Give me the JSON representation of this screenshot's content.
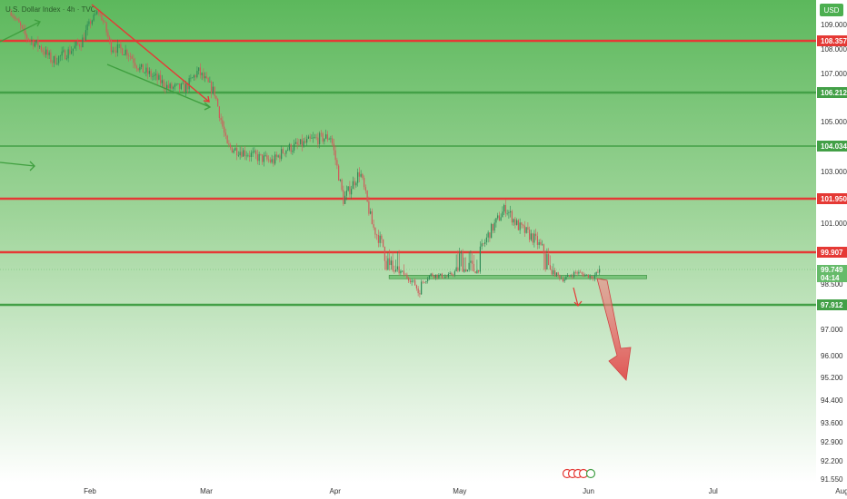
{
  "header": {
    "title": "U.S. Dollar Index · 4h · TVC",
    "currency": "USD"
  },
  "colors": {
    "bg_top": "#4caf50",
    "bg_bottom": "#ffffff",
    "support": "#43a047",
    "resistance": "#e53935",
    "candle_up": "#2e8b57",
    "candle_down": "#d05a5a",
    "zone": "#66bb6a"
  },
  "chart_data": {
    "type": "candlestick",
    "title": "U.S. Dollar Index · 4h · TVC",
    "x_ticks": [
      "Feb",
      "Mar",
      "Apr",
      "May",
      "Jun",
      "Jul",
      "Aug"
    ],
    "y_ticks": [
      "109.000",
      "108.000",
      "107.000",
      "105.000",
      "103.000",
      "101.000",
      "98.500",
      "97.000",
      "96.000",
      "95.200",
      "94.400",
      "93.600",
      "92.900",
      "92.200",
      "91.550"
    ],
    "levels": [
      {
        "value": 108.357,
        "label": "108.357",
        "color": "red"
      },
      {
        "value": 106.212,
        "label": "106.212",
        "color": "green"
      },
      {
        "value": 104.034,
        "label": "104.034",
        "color": "green"
      },
      {
        "value": 101.95,
        "label": "101.950",
        "color": "red"
      },
      {
        "value": 99.907,
        "label": "99.907",
        "color": "red"
      },
      {
        "value": 97.912,
        "label": "97.912",
        "color": "green"
      }
    ],
    "current_price": {
      "value": 99.749,
      "label": "99.749",
      "countdown": "04:14"
    },
    "price_path": [
      [
        "Jan 13",
        109.8
      ],
      [
        "Jan 16",
        108.6
      ],
      [
        "Jan 20",
        108.1
      ],
      [
        "Jan 23",
        107.5
      ],
      [
        "Jan 27",
        107.9
      ],
      [
        "Jan 30",
        108.3
      ],
      [
        "Feb 3",
        109.9
      ],
      [
        "Feb 6",
        108.1
      ],
      [
        "Feb 10",
        107.9
      ],
      [
        "Feb 13",
        107.2
      ],
      [
        "Feb 17",
        106.8
      ],
      [
        "Feb 20",
        106.4
      ],
      [
        "Feb 24",
        106.4
      ],
      [
        "Feb 27",
        107.1
      ],
      [
        "Mar 3",
        106.2
      ],
      [
        "Mar 6",
        104.0
      ],
      [
        "Mar 10",
        103.8
      ],
      [
        "Mar 13",
        103.6
      ],
      [
        "Mar 17",
        103.4
      ],
      [
        "Mar 20",
        103.9
      ],
      [
        "Mar 24",
        104.1
      ],
      [
        "Mar 27",
        104.3
      ],
      [
        "Mar 31",
        104.4
      ],
      [
        "Apr 3",
        101.9
      ],
      [
        "Apr 7",
        103.0
      ],
      [
        "Apr 10",
        100.9
      ],
      [
        "Apr 14",
        99.7
      ],
      [
        "Apr 17",
        99.5
      ],
      [
        "Apr 21",
        98.3
      ],
      [
        "Apr 24",
        99.3
      ],
      [
        "Apr 28",
        99.1
      ],
      [
        "May 1",
        99.8
      ],
      [
        "May 5",
        99.6
      ],
      [
        "May 8",
        100.6
      ],
      [
        "May 12",
        101.6
      ],
      [
        "May 15",
        100.9
      ],
      [
        "May 19",
        100.4
      ],
      [
        "May 22",
        99.8
      ],
      [
        "May 26",
        98.9
      ],
      [
        "May 29",
        99.5
      ],
      [
        "Jun 2",
        99.1
      ],
      [
        "Jun 4",
        99.7
      ]
    ],
    "zone": {
      "from": "Apr 14",
      "to": "Jun 15",
      "low": 98.95,
      "high": 99.25
    },
    "annotations": [
      "wedge-breakdown-arrows",
      "projected-down-arrow"
    ],
    "grid": false,
    "legend": "none"
  }
}
